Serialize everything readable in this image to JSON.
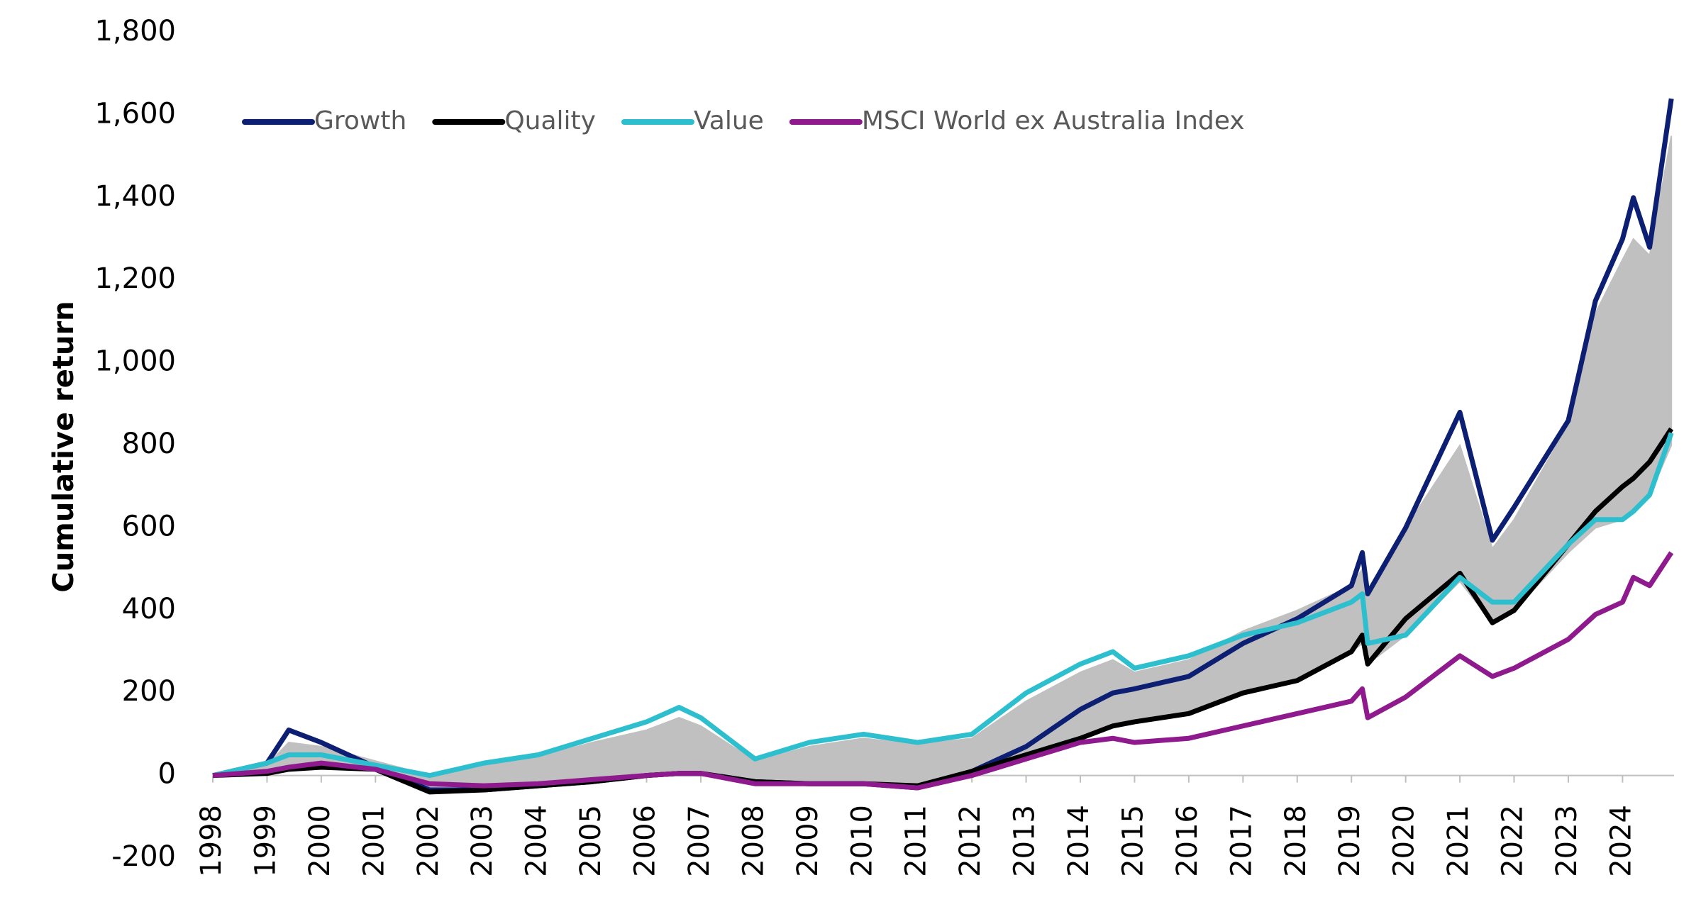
{
  "chart_data": {
    "type": "line",
    "y_label": "Cumulative return",
    "legend": "top-left",
    "x": [
      1998,
      1999,
      1999.4,
      2000,
      2001,
      2002,
      2003,
      2004,
      2005,
      2006,
      2006.6,
      2007,
      2008,
      2009,
      2010,
      2011,
      2012,
      2013,
      2014,
      2014.6,
      2015,
      2016,
      2017,
      2018,
      2019,
      2019.2,
      2019.3,
      2020,
      2021,
      2021.6,
      2022,
      2023,
      2023.5,
      2024,
      2024.2,
      2024.5,
      2024.9
    ],
    "xlim": [
      1998,
      2024.95
    ],
    "xticks": [
      1998,
      1999,
      2000,
      2001,
      2002,
      2003,
      2004,
      2005,
      2006,
      2007,
      2008,
      2009,
      2010,
      2011,
      2012,
      2013,
      2014,
      2015,
      2016,
      2017,
      2018,
      2019,
      2020,
      2021,
      2022,
      2023,
      2024
    ],
    "ylim": [
      -200,
      1800
    ],
    "yticks": [
      -200,
      0,
      200,
      400,
      600,
      800,
      {
        "value": 1000,
        "label": "1,000"
      },
      {
        "value": 1200,
        "label": "1,200"
      },
      {
        "value": 1400,
        "label": "1,400"
      },
      {
        "value": 1600,
        "label": "1,600"
      },
      {
        "value": 1800,
        "label": "1,800"
      }
    ],
    "band": {
      "color": "#c0c0c0",
      "upper": [
        0,
        25,
        80,
        70,
        35,
        0,
        25,
        45,
        80,
        110,
        140,
        120,
        35,
        70,
        90,
        75,
        90,
        180,
        250,
        280,
        250,
        280,
        350,
        400,
        460,
        500,
        440,
        600,
        800,
        550,
        620,
        850,
        1120,
        1250,
        1300,
        1260,
        1550
      ],
      "lower": [
        0,
        5,
        15,
        20,
        15,
        -35,
        -30,
        -20,
        -10,
        0,
        5,
        5,
        -15,
        -15,
        -15,
        -25,
        10,
        50,
        90,
        120,
        130,
        150,
        200,
        230,
        300,
        320,
        270,
        340,
        470,
        370,
        400,
        540,
        600,
        620,
        640,
        680,
        800
      ]
    },
    "series": [
      {
        "name": "Growth",
        "color": "#0d1f73",
        "values": [
          0,
          30,
          110,
          80,
          20,
          -35,
          -35,
          -25,
          -15,
          0,
          5,
          5,
          -15,
          -20,
          -20,
          -30,
          10,
          70,
          160,
          200,
          210,
          240,
          320,
          380,
          460,
          540,
          440,
          600,
          880,
          570,
          650,
          860,
          1150,
          1300,
          1400,
          1280,
          1640
        ]
      },
      {
        "name": "Quality",
        "color": "#000000",
        "values": [
          0,
          5,
          15,
          20,
          15,
          -40,
          -35,
          -25,
          -15,
          0,
          5,
          5,
          -15,
          -20,
          -20,
          -25,
          10,
          50,
          90,
          120,
          130,
          150,
          200,
          230,
          300,
          340,
          270,
          380,
          490,
          370,
          400,
          560,
          640,
          700,
          720,
          760,
          840
        ]
      },
      {
        "name": "Value",
        "color": "#2ebfcf",
        "values": [
          0,
          30,
          50,
          50,
          25,
          0,
          30,
          50,
          90,
          130,
          165,
          140,
          40,
          80,
          100,
          80,
          100,
          200,
          270,
          300,
          260,
          290,
          340,
          370,
          420,
          440,
          320,
          340,
          480,
          420,
          420,
          560,
          620,
          620,
          640,
          680,
          830
        ]
      },
      {
        "name": "MSCI World ex Australia Index",
        "color": "#8e1a8e",
        "values": [
          0,
          10,
          20,
          30,
          15,
          -20,
          -25,
          -20,
          -10,
          0,
          5,
          5,
          -20,
          -20,
          -20,
          -30,
          0,
          40,
          80,
          90,
          80,
          90,
          120,
          150,
          180,
          210,
          140,
          190,
          290,
          240,
          260,
          330,
          390,
          420,
          480,
          460,
          540
        ]
      }
    ]
  }
}
